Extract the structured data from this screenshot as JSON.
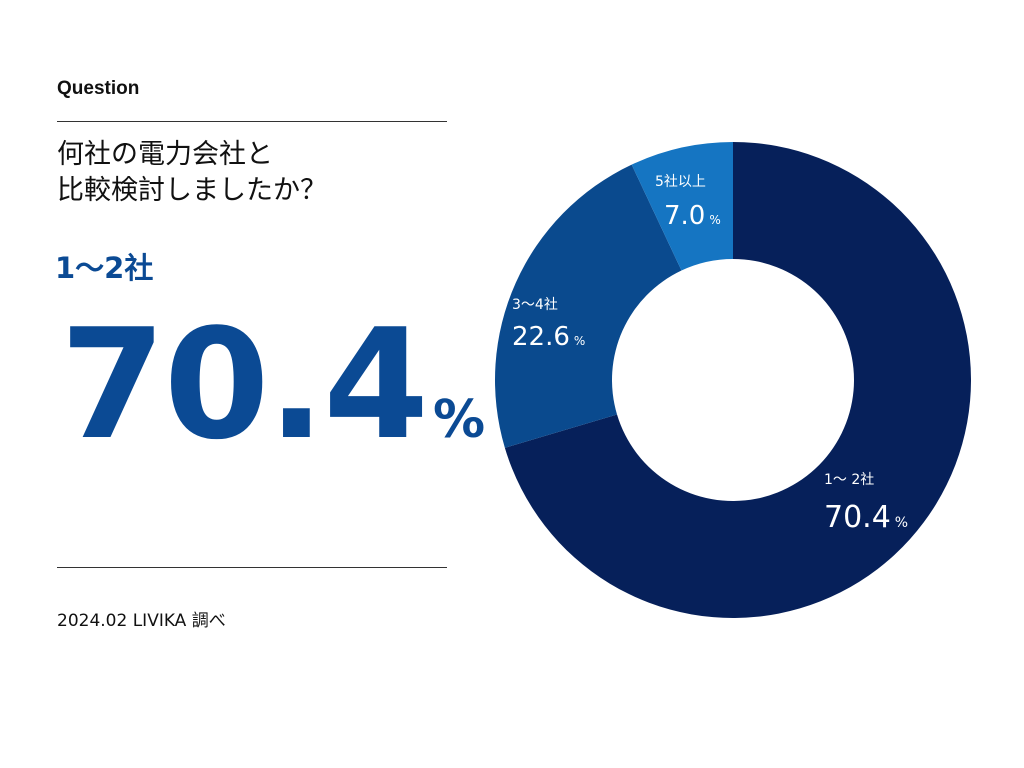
{
  "header": {
    "question_label": "Question"
  },
  "question": {
    "line1": "何社の電力会社と",
    "line2": "比較検討しましたか？"
  },
  "highlight": {
    "label": "1～2社",
    "value": "70.4",
    "unit": "%"
  },
  "source": "2024.02 LIVIKA 調べ",
  "colors": {
    "accent": "#0b4a94",
    "slice_1_2": "#06205a",
    "slice_3_4": "#0a4a8e",
    "slice_5plus": "#1575c2"
  },
  "chart_data": {
    "type": "pie",
    "donut": true,
    "categories": [
      "1～ 2社",
      "3～4社",
      "5社以上"
    ],
    "values": [
      70.4,
      22.6,
      7.0
    ],
    "value_labels": [
      "70.4",
      "22.6",
      "7.0"
    ],
    "unit": "%",
    "colors": [
      "#06205a",
      "#0a4a8e",
      "#1575c2"
    ]
  }
}
